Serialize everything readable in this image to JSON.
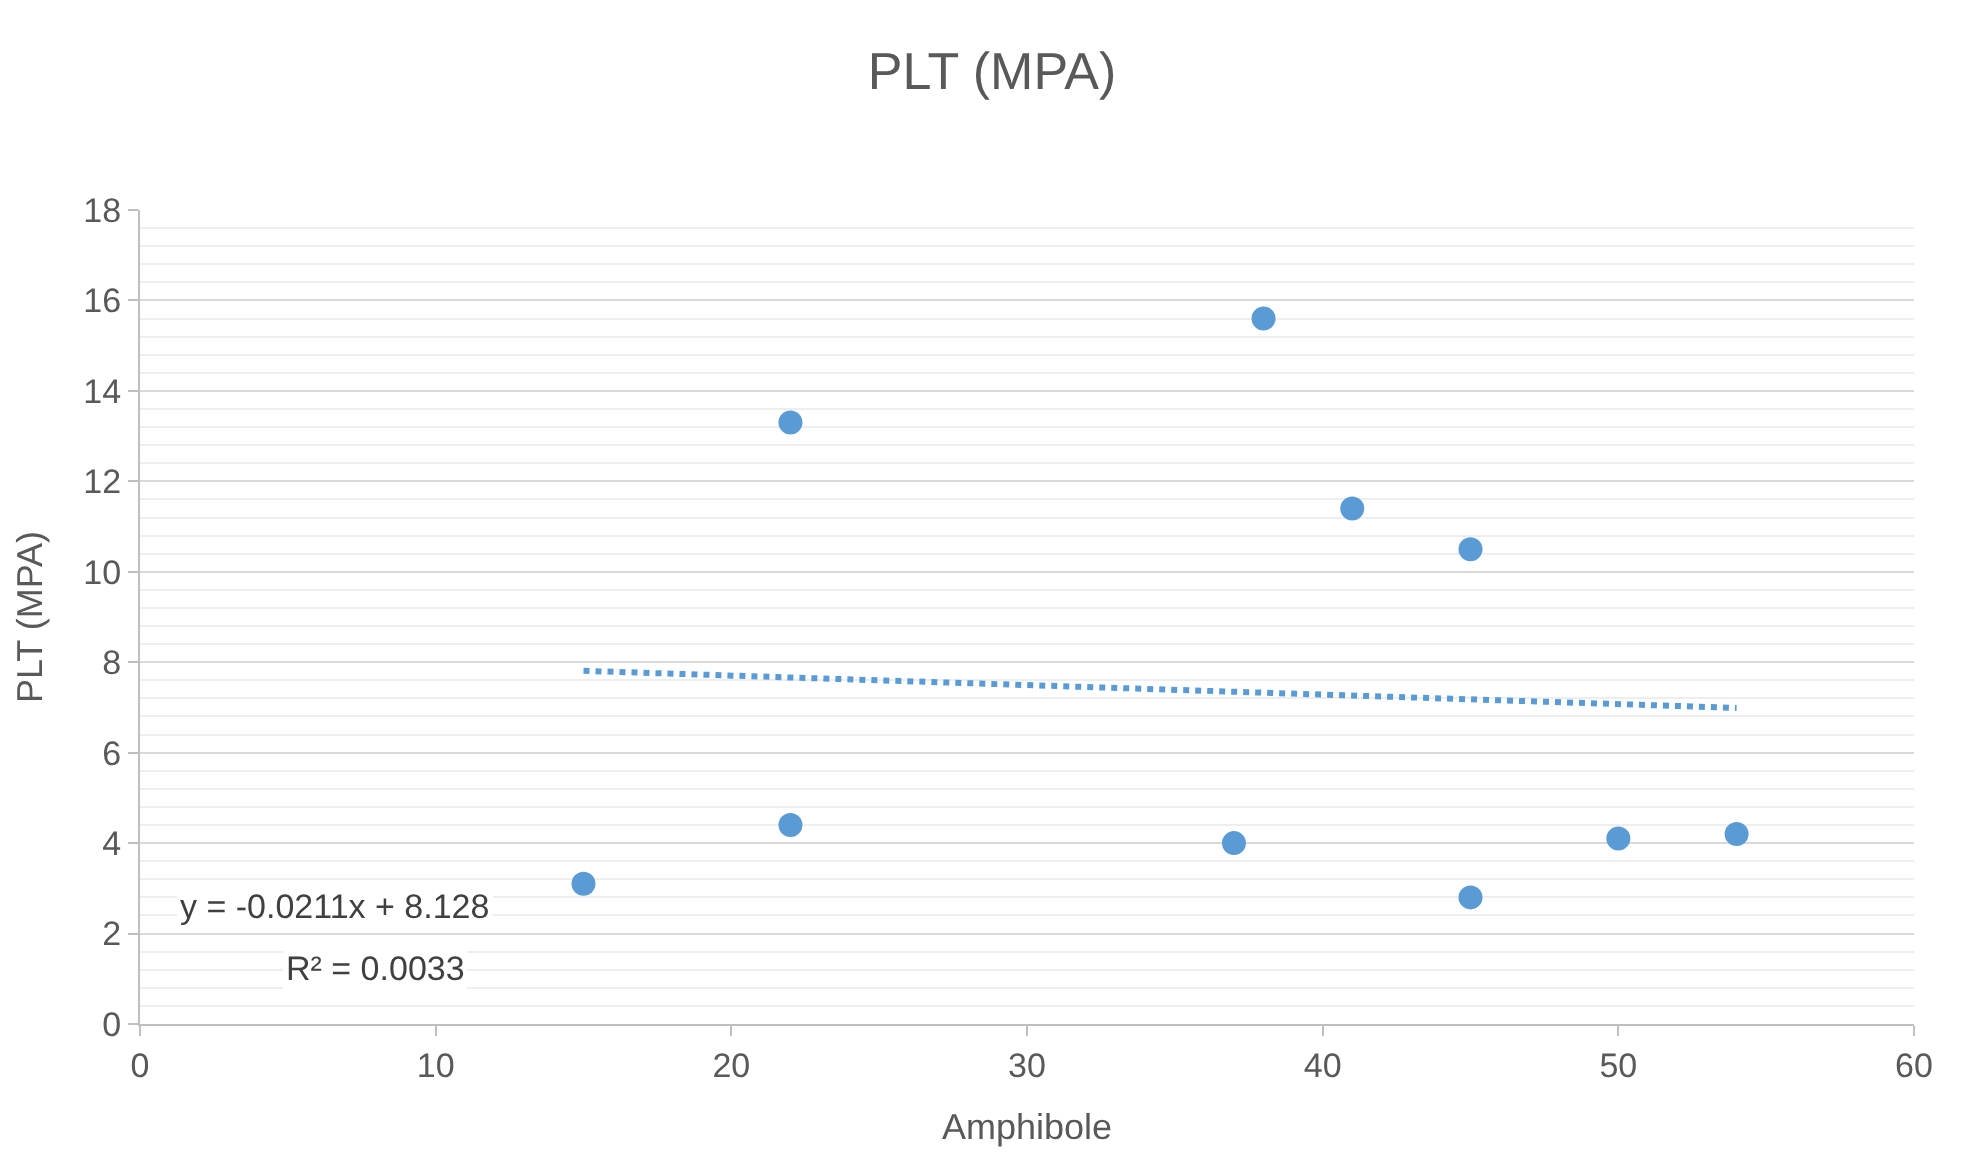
{
  "chart_data": {
    "type": "scatter",
    "title": "PLT (MPA)",
    "xlabel": "Amphibole",
    "ylabel": "PLT (MPA)",
    "series": [
      {
        "color": "#5b9bd5",
        "marker": "circle",
        "x": [
          15,
          22,
          22,
          37,
          38,
          41,
          45,
          45,
          50,
          54
        ],
        "values": [
          3.1,
          13.3,
          4.4,
          4.0,
          15.6,
          11.4,
          10.5,
          2.8,
          4.1,
          4.2
        ]
      },
      {
        "type": "line",
        "color": "#5b9bd5",
        "line_style": "dotted",
        "marker": "none",
        "x": [
          15,
          54
        ],
        "values": [
          7.81,
          6.99
        ]
      }
    ],
    "annotations": [
      "y = -0.0211x + 8.128",
      "R² = 0.0033"
    ],
    "xlim": [
      0,
      60
    ],
    "xticks": [
      0,
      10,
      20,
      30,
      40,
      50,
      60
    ],
    "ylim": [
      0,
      18
    ],
    "yticks": [
      0,
      2,
      4,
      6,
      8,
      10,
      12,
      14,
      16,
      18
    ],
    "grid": "y"
  }
}
